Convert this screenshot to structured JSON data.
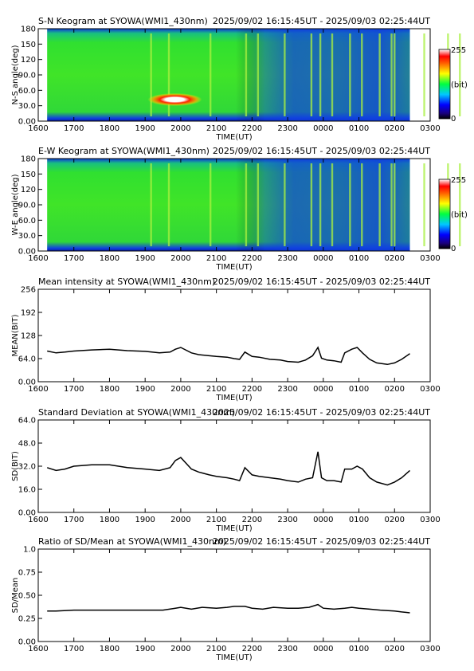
{
  "chart_data": [
    {
      "type": "heatmap",
      "title": "S-N Keogram at SYOWA(WMI1_430nm)",
      "time_range": "2025/09/02 16:15:45UT - 2025/09/03 02:25:44UT",
      "xlabel": "TIME(UT)",
      "ylabel": "N-S angle(deg)",
      "x_ticks": [
        "1600",
        "1700",
        "1800",
        "1900",
        "2000",
        "2100",
        "2200",
        "2300",
        "0000",
        "0100",
        "0200",
        "0300"
      ],
      "y_ticks": [
        "0.00",
        "30.0",
        "60.0",
        "90.0",
        "120",
        "150",
        "180"
      ],
      "ylim": [
        0,
        180
      ],
      "colorbar": {
        "max": "255",
        "mid": "(bit)",
        "min": "0"
      },
      "hotspot": {
        "time": "1950",
        "angle": 42,
        "value": 255
      },
      "bright_bands": [
        1910,
        1940,
        2050,
        2150,
        2210,
        2255,
        2340,
        2355,
        2415,
        2445,
        2505,
        2535,
        2555,
        2600,
        2650,
        2730,
        2750
      ]
    },
    {
      "type": "heatmap",
      "title": "E-W Keogram at SYOWA(WMI1_430nm)",
      "time_range": "2025/09/02 16:15:45UT - 2025/09/03 02:25:44UT",
      "xlabel": "TIME(UT)",
      "ylabel": "W-E angle(deg)",
      "x_ticks": [
        "1600",
        "1700",
        "1800",
        "1900",
        "2000",
        "2100",
        "2200",
        "2300",
        "0000",
        "0100",
        "0200",
        "0300"
      ],
      "y_ticks": [
        "0.00",
        "30.0",
        "60.0",
        "90.0",
        "120",
        "150",
        "180"
      ],
      "ylim": [
        0,
        180
      ],
      "colorbar": {
        "max": "255",
        "mid": "(bit)",
        "min": "0"
      },
      "bright_bands": [
        1910,
        1940,
        2050,
        2150,
        2210,
        2255,
        2340,
        2355,
        2415,
        2445,
        2505,
        2535,
        2555,
        2600,
        2650,
        2730,
        2750
      ]
    },
    {
      "type": "line",
      "title": "Mean intensity at SYOWA(WMI1_430nm)",
      "time_range": "2025/09/02 16:15:45UT - 2025/09/03 02:25:44UT",
      "xlabel": "TIME(UT)",
      "ylabel": "MEAN(BIT)",
      "x_ticks": [
        "1600",
        "1700",
        "1800",
        "1900",
        "2000",
        "2100",
        "2200",
        "2300",
        "0000",
        "0100",
        "0200",
        "0300"
      ],
      "y_ticks": [
        "0.00",
        "64.0",
        "128",
        "192",
        "256"
      ],
      "ylim": [
        0,
        256
      ],
      "series": [
        {
          "x": [
            16.25,
            16.5,
            16.75,
            17.0,
            17.5,
            18.0,
            18.5,
            19.0,
            19.4,
            19.7,
            19.85,
            20.0,
            20.3,
            20.5,
            20.8,
            21.0,
            21.3,
            21.5,
            21.65,
            21.8,
            22.0,
            22.2,
            22.5,
            22.8,
            23.0,
            23.3,
            23.5,
            23.7,
            23.85,
            23.95,
            24.1,
            24.3,
            24.5,
            24.6,
            24.8,
            24.95,
            25.1,
            25.3,
            25.5,
            25.8,
            26.0,
            26.2,
            26.43
          ],
          "y": [
            85,
            80,
            82,
            85,
            88,
            90,
            86,
            84,
            80,
            82,
            90,
            95,
            80,
            75,
            72,
            70,
            68,
            64,
            62,
            82,
            70,
            68,
            62,
            60,
            56,
            54,
            60,
            72,
            95,
            65,
            60,
            58,
            54,
            80,
            90,
            95,
            80,
            62,
            52,
            48,
            52,
            62,
            78
          ]
        }
      ]
    },
    {
      "type": "line",
      "title": "Standard Deviation at SYOWA(WMI1_430nm)",
      "time_range": "2025/09/02 16:15:45UT - 2025/09/03 02:25:44UT",
      "xlabel": "TIME(UT)",
      "ylabel": "SD(BIT)",
      "x_ticks": [
        "1600",
        "1700",
        "1800",
        "1900",
        "2000",
        "2100",
        "2200",
        "2300",
        "0000",
        "0100",
        "0200",
        "0300"
      ],
      "y_ticks": [
        "0.00",
        "16.0",
        "32.0",
        "48.0",
        "64.0"
      ],
      "ylim": [
        0,
        64
      ],
      "series": [
        {
          "x": [
            16.25,
            16.5,
            16.75,
            17.0,
            17.5,
            18.0,
            18.5,
            19.0,
            19.4,
            19.7,
            19.85,
            20.0,
            20.3,
            20.5,
            20.8,
            21.0,
            21.3,
            21.5,
            21.65,
            21.8,
            22.0,
            22.2,
            22.5,
            22.8,
            23.0,
            23.3,
            23.5,
            23.7,
            23.85,
            23.95,
            24.1,
            24.3,
            24.5,
            24.6,
            24.8,
            24.95,
            25.1,
            25.3,
            25.5,
            25.8,
            26.0,
            26.2,
            26.43
          ],
          "y": [
            31,
            29,
            30,
            32,
            33,
            33,
            31,
            30,
            29,
            31,
            36,
            38,
            30,
            28,
            26,
            25,
            24,
            23,
            22,
            31,
            26,
            25,
            24,
            23,
            22,
            21,
            23,
            24,
            42,
            24,
            22,
            22,
            21,
            30,
            30,
            32,
            30,
            24,
            21,
            19,
            21,
            24,
            29
          ]
        }
      ]
    },
    {
      "type": "line",
      "title": "Ratio of SD/Mean at SYOWA(WMI1_430nm)",
      "time_range": "2025/09/02 16:15:45UT - 2025/09/03 02:25:44UT",
      "xlabel": "TIME(UT)",
      "ylabel": "SD/Mean",
      "x_ticks": [
        "1600",
        "1700",
        "1800",
        "1900",
        "2000",
        "2100",
        "2200",
        "2300",
        "0000",
        "0100",
        "0200",
        "0300"
      ],
      "y_ticks": [
        "0.00",
        "0.25",
        "0.50",
        "0.75",
        "1.0"
      ],
      "ylim": [
        0,
        1
      ],
      "series": [
        {
          "x": [
            16.25,
            16.5,
            17.0,
            17.5,
            18.0,
            18.5,
            19.0,
            19.5,
            19.85,
            20.0,
            20.3,
            20.6,
            21.0,
            21.3,
            21.5,
            21.8,
            22.0,
            22.3,
            22.6,
            23.0,
            23.3,
            23.6,
            23.85,
            24.0,
            24.3,
            24.6,
            24.8,
            25.0,
            25.3,
            25.6,
            26.0,
            26.2,
            26.43
          ],
          "y": [
            0.33,
            0.33,
            0.34,
            0.34,
            0.34,
            0.34,
            0.34,
            0.34,
            0.36,
            0.37,
            0.35,
            0.37,
            0.36,
            0.37,
            0.38,
            0.38,
            0.36,
            0.35,
            0.37,
            0.36,
            0.36,
            0.37,
            0.4,
            0.36,
            0.35,
            0.36,
            0.37,
            0.36,
            0.35,
            0.34,
            0.33,
            0.32,
            0.31
          ]
        }
      ]
    }
  ]
}
